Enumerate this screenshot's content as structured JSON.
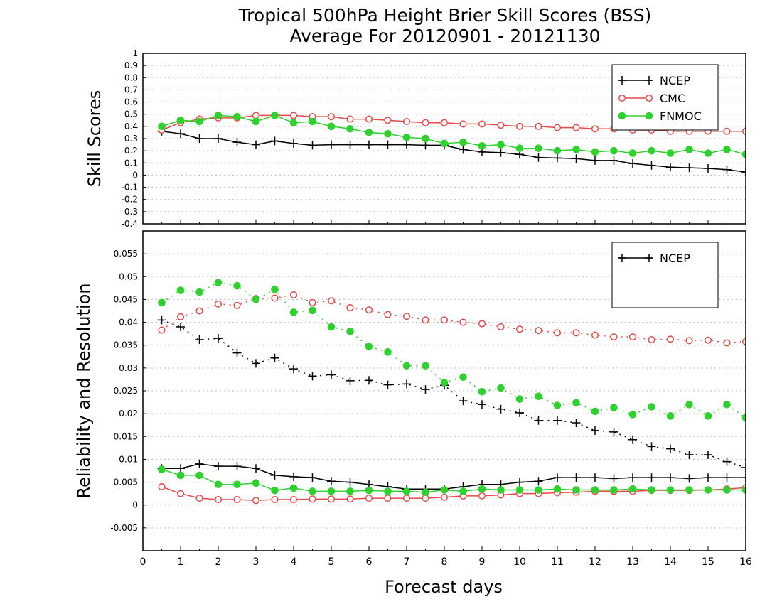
{
  "chart_data": [
    {
      "type": "line",
      "title": "Tropical 500hPa Height Brier Skill Scores (BSS)",
      "subtitle": "Average For 20120901 - 20121130",
      "ylabel": "Skill Scores",
      "xlabel": "",
      "ylim": [
        -0.4,
        1
      ],
      "xlim": [
        0,
        16
      ],
      "yticks": [
        "-0.4",
        "-0.3",
        "-0.2",
        "-0.1",
        "0",
        "0.1",
        "0.2",
        "0.3",
        "0.4",
        "0.5",
        "0.6",
        "0.7",
        "0.8",
        "0.9",
        "1"
      ],
      "grid": true,
      "legend": "top-right",
      "x": [
        0.5,
        1,
        1.5,
        2,
        2.5,
        3,
        3.5,
        4,
        4.5,
        5,
        5.5,
        6,
        6.5,
        7,
        7.5,
        8,
        8.5,
        9,
        9.5,
        10,
        10.5,
        11,
        11.5,
        12,
        12.5,
        13,
        13.5,
        14,
        14.5,
        15,
        15.5,
        16
      ],
      "series": [
        {
          "name": "NCEP",
          "color": "#000000",
          "marker": "plus",
          "line": "solid",
          "values": [
            0.36,
            0.34,
            0.3,
            0.3,
            0.27,
            0.25,
            0.28,
            0.26,
            0.245,
            0.25,
            0.25,
            0.25,
            0.25,
            0.25,
            0.245,
            0.245,
            0.21,
            0.19,
            0.185,
            0.17,
            0.145,
            0.14,
            0.135,
            0.12,
            0.12,
            0.095,
            0.08,
            0.065,
            0.06,
            0.055,
            0.045,
            0.025
          ]
        },
        {
          "name": "CMC",
          "color": "#e84a4a",
          "marker": "open-circle",
          "line": "solid",
          "values": [
            0.37,
            0.43,
            0.46,
            0.47,
            0.47,
            0.49,
            0.49,
            0.49,
            0.48,
            0.48,
            0.46,
            0.46,
            0.45,
            0.44,
            0.43,
            0.43,
            0.42,
            0.42,
            0.41,
            0.4,
            0.4,
            0.39,
            0.39,
            0.38,
            0.38,
            0.37,
            0.37,
            0.36,
            0.36,
            0.36,
            0.36,
            0.36
          ]
        },
        {
          "name": "FNMOC",
          "color": "#2fd12f",
          "marker": "filled-circle",
          "line": "solid",
          "values": [
            0.4,
            0.45,
            0.44,
            0.49,
            0.48,
            0.44,
            0.49,
            0.43,
            0.44,
            0.4,
            0.38,
            0.35,
            0.34,
            0.31,
            0.3,
            0.26,
            0.27,
            0.24,
            0.25,
            0.22,
            0.22,
            0.2,
            0.21,
            0.19,
            0.2,
            0.18,
            0.2,
            0.18,
            0.21,
            0.18,
            0.21,
            0.17
          ]
        }
      ]
    },
    {
      "type": "line",
      "ylabel": "Reliability and Resolution",
      "xlabel": "Forecast days",
      "ylim": [
        -0.01,
        0.06
      ],
      "xlim": [
        0,
        16
      ],
      "yticks": [
        "-0.005",
        "0",
        "0.005",
        "0.01",
        "0.015",
        "0.02",
        "0.025",
        "0.03",
        "0.035",
        "0.04",
        "0.045",
        "0.05",
        "0.055"
      ],
      "xticks": [
        "0",
        "1",
        "2",
        "3",
        "4",
        "5",
        "6",
        "7",
        "8",
        "9",
        "10",
        "11",
        "12",
        "13",
        "14",
        "15",
        "16"
      ],
      "grid": true,
      "legend": "top-right",
      "x": [
        0.5,
        1,
        1.5,
        2,
        2.5,
        3,
        3.5,
        4,
        4.5,
        5,
        5.5,
        6,
        6.5,
        7,
        7.5,
        8,
        8.5,
        9,
        9.5,
        10,
        10.5,
        11,
        11.5,
        12,
        12.5,
        13,
        13.5,
        14,
        14.5,
        15,
        15.5,
        16
      ],
      "series": [
        {
          "name": "NCEP",
          "color": "#000000",
          "marker": "plus",
          "line": "dotted",
          "legend": false,
          "values": [
            0.0405,
            0.039,
            0.0362,
            0.0365,
            0.0333,
            0.031,
            0.0322,
            0.0298,
            0.0282,
            0.0285,
            0.0272,
            0.0273,
            0.0263,
            0.0265,
            0.0253,
            0.0262,
            0.0228,
            0.022,
            0.021,
            0.0202,
            0.0185,
            0.0185,
            0.018,
            0.0163,
            0.016,
            0.0143,
            0.0128,
            0.0123,
            0.011,
            0.011,
            0.0095,
            0.0082
          ]
        },
        {
          "name": "CMC",
          "color": "#e84a4a",
          "marker": "open-circle",
          "line": "dotted",
          "legend": false,
          "values": [
            0.0383,
            0.0412,
            0.0425,
            0.044,
            0.0437,
            0.0452,
            0.0453,
            0.046,
            0.0443,
            0.0447,
            0.0432,
            0.0427,
            0.0417,
            0.0413,
            0.0405,
            0.0405,
            0.04,
            0.0397,
            0.039,
            0.0385,
            0.0382,
            0.0377,
            0.0377,
            0.0372,
            0.0368,
            0.0368,
            0.0362,
            0.0363,
            0.036,
            0.0361,
            0.0355,
            0.0358
          ]
        },
        {
          "name": "FNMOC",
          "color": "#2fd12f",
          "marker": "filled-circle",
          "line": "dotted",
          "legend": false,
          "values": [
            0.0443,
            0.047,
            0.0466,
            0.0487,
            0.048,
            0.045,
            0.0472,
            0.0422,
            0.0426,
            0.039,
            0.038,
            0.0347,
            0.0335,
            0.0305,
            0.0305,
            0.0268,
            0.028,
            0.0248,
            0.0256,
            0.0232,
            0.0238,
            0.0218,
            0.0224,
            0.0205,
            0.0213,
            0.0198,
            0.0215,
            0.0195,
            0.022,
            0.0195,
            0.022,
            0.0191
          ]
        },
        {
          "name": "NCEP",
          "color": "#000000",
          "marker": "plus",
          "line": "solid",
          "values": [
            0.008,
            0.008,
            0.009,
            0.0085,
            0.0085,
            0.008,
            0.0065,
            0.0062,
            0.006,
            0.0052,
            0.005,
            0.0045,
            0.004,
            0.0035,
            0.0035,
            0.0035,
            0.004,
            0.0045,
            0.0045,
            0.005,
            0.0052,
            0.006,
            0.006,
            0.006,
            0.0058,
            0.006,
            0.006,
            0.006,
            0.0058,
            0.006,
            0.006,
            0.006
          ]
        },
        {
          "name": "CMC",
          "color": "#e84a4a",
          "marker": "open-circle",
          "line": "solid",
          "legend": false,
          "values": [
            0.004,
            0.0025,
            0.0015,
            0.0012,
            0.0012,
            0.001,
            0.0012,
            0.0012,
            0.0013,
            0.0013,
            0.0013,
            0.0015,
            0.0015,
            0.0015,
            0.0015,
            0.0017,
            0.002,
            0.002,
            0.0022,
            0.0025,
            0.0025,
            0.0027,
            0.0028,
            0.003,
            0.003,
            0.003,
            0.0032,
            0.0032,
            0.0032,
            0.0033,
            0.0035,
            0.0038
          ]
        },
        {
          "name": "FNMOC",
          "color": "#2fd12f",
          "marker": "filled-circle",
          "line": "solid",
          "legend": false,
          "values": [
            0.0078,
            0.0065,
            0.0065,
            0.0045,
            0.0045,
            0.0048,
            0.0032,
            0.0037,
            0.003,
            0.003,
            0.003,
            0.0032,
            0.003,
            0.003,
            0.0028,
            0.0033,
            0.003,
            0.0035,
            0.0033,
            0.0033,
            0.0033,
            0.0035,
            0.0033,
            0.0033,
            0.0033,
            0.0035,
            0.0033,
            0.0033,
            0.0033,
            0.0033,
            0.0033,
            0.0033
          ]
        }
      ]
    }
  ]
}
